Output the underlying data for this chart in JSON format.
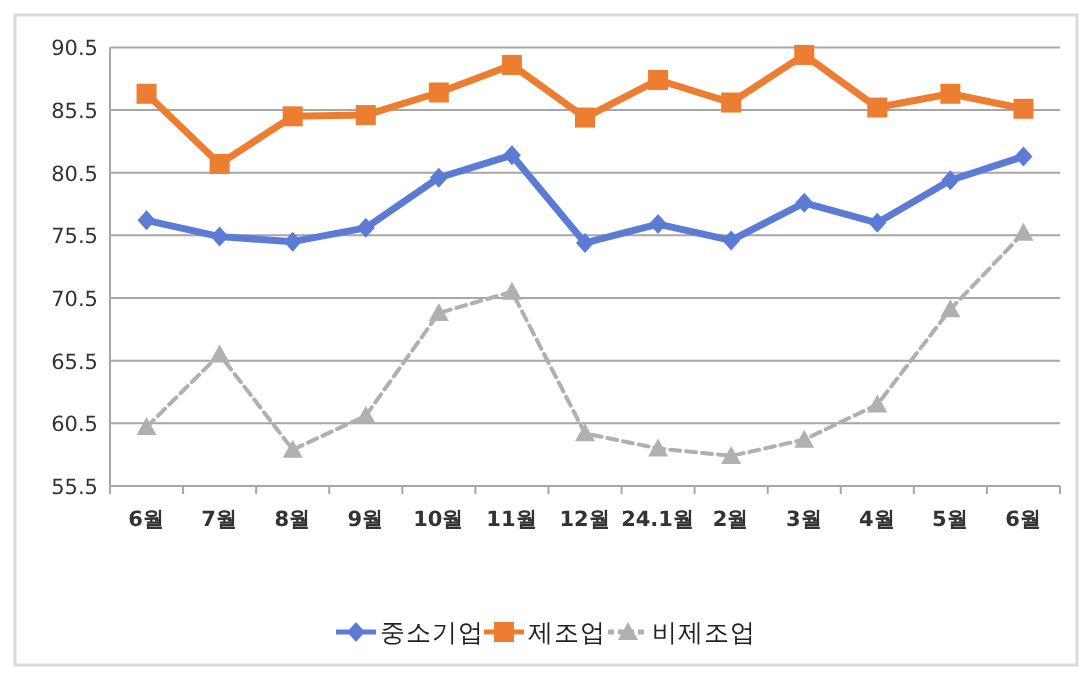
{
  "chart_data": {
    "type": "line",
    "categories": [
      "6월",
      "7월",
      "8월",
      "9월",
      "10월",
      "11월",
      "12월",
      "24.1월",
      "2월",
      "3월",
      "4월",
      "5월",
      "6월"
    ],
    "series": [
      {
        "name": "중소기업",
        "color": "#5b7bd5",
        "marker": "diamond",
        "line_style": "solid",
        "values": [
          76.7,
          75.4,
          75.0,
          76.1,
          80.1,
          81.9,
          74.9,
          76.4,
          75.1,
          78.1,
          76.5,
          79.9,
          81.8
        ]
      },
      {
        "name": "제조업",
        "color": "#ed7d31",
        "marker": "square",
        "line_style": "solid",
        "values": [
          86.8,
          81.2,
          85.0,
          85.1,
          86.9,
          89.1,
          84.9,
          87.9,
          86.1,
          89.9,
          85.7,
          86.8,
          85.6
        ]
      },
      {
        "name": "비제조업",
        "color": "#b0b0b0",
        "marker": "triangle",
        "line_style": "dashed",
        "values": [
          60.2,
          66.0,
          58.4,
          61.1,
          69.3,
          71.0,
          59.7,
          58.5,
          57.9,
          59.2,
          62.0,
          69.6,
          75.7
        ]
      }
    ],
    "ylim": [
      55.5,
      90.5
    ],
    "yticks": [
      55.5,
      60.5,
      65.5,
      70.5,
      75.5,
      80.5,
      85.5,
      90.5
    ],
    "grid": "y",
    "legend": "bottom"
  }
}
